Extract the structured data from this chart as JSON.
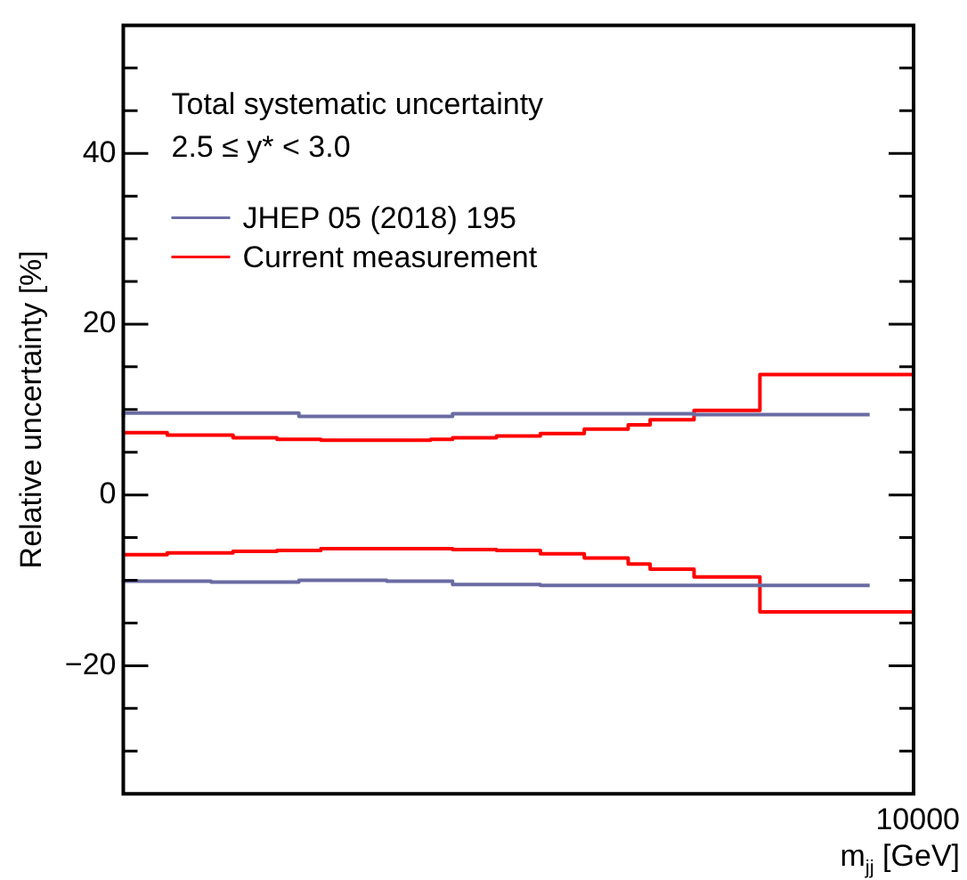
{
  "chart_data": {
    "type": "step",
    "title": "Total systematic uncertainty",
    "subtitle": "2.5 ≤ y* < 3.0",
    "xlabel": "m$_{jj}$ [GeV]",
    "ylabel": "Relative uncertainty [%]",
    "annotations": [
      "10000"
    ],
    "categories": [
      null,
      null,
      null,
      null,
      null,
      null,
      null,
      null,
      null,
      null,
      null,
      null,
      null,
      null,
      null,
      null,
      null,
      null,
      null,
      null,
      null,
      null,
      null,
      null,
      null,
      null,
      null,
      null,
      null,
      null,
      null,
      null,
      null,
      null,
      null,
      null,
      null
    ],
    "ylim": [
      -35,
      55
    ],
    "yticks": [
      {
        "value": -30,
        "label": null
      },
      {
        "value": -25,
        "label": null
      },
      {
        "value": -20,
        "label": "−20"
      },
      {
        "value": -15,
        "label": null
      },
      {
        "value": -10,
        "label": null
      },
      {
        "value": -5,
        "label": null
      },
      0,
      {
        "value": 5,
        "label": null
      },
      {
        "value": 10,
        "label": null
      },
      {
        "value": 15,
        "label": null
      },
      20,
      {
        "value": 25,
        "label": null
      },
      {
        "value": 30,
        "label": null
      },
      {
        "value": 35,
        "label": null
      },
      40,
      {
        "value": 45,
        "label": null
      },
      {
        "value": 50,
        "label": null
      }
    ],
    "grid": false,
    "legend": "top left",
    "marker": "none",
    "line_style": "solid",
    "series": [
      {
        "name": "JHEP 05 (2018) 195",
        "color": "#6b6ba3",
        "values": [
          9.1,
          9.6,
          9.6,
          9.6,
          9.6,
          9.6,
          9.6,
          9.6,
          9.6,
          9.2,
          9.2,
          9.2,
          9.2,
          9.2,
          9.2,
          9.2,
          9.5,
          9.5,
          9.5,
          9.5,
          9.5,
          9.5,
          9.5,
          9.5,
          9.5,
          9.5,
          9.5,
          9.4,
          9.4,
          9.4,
          9.4,
          9.4,
          9.4,
          9.4,
          9.4,
          null,
          null
        ]
      },
      {
        "color": "#6b6ba3",
        "values": [
          -10.0,
          -10.1,
          -10.1,
          -10.1,
          -10.1,
          -10.2,
          -10.2,
          -10.2,
          -10.2,
          -10.0,
          -10.0,
          -10.0,
          -10.0,
          -10.1,
          -10.1,
          -10.1,
          -10.5,
          -10.5,
          -10.5,
          -10.5,
          -10.6,
          -10.6,
          -10.6,
          -10.6,
          -10.6,
          -10.6,
          -10.6,
          -10.6,
          -10.6,
          -10.6,
          -10.6,
          -10.6,
          -10.6,
          -10.6,
          -10.6,
          null,
          null
        ]
      },
      {
        "name": "Current measurement",
        "color": "#ff0000",
        "values": [
          7.3,
          7.3,
          7.3,
          7.0,
          7.0,
          7.0,
          6.7,
          6.7,
          6.5,
          6.5,
          6.4,
          6.4,
          6.4,
          6.4,
          6.4,
          6.5,
          6.7,
          6.7,
          6.9,
          6.9,
          7.2,
          7.2,
          7.7,
          7.7,
          8.2,
          8.8,
          8.8,
          9.9,
          9.9,
          9.9,
          14.1,
          14.1,
          14.1,
          14.1,
          14.1,
          14.1,
          14.1
        ]
      },
      {
        "color": "#ff0000",
        "values": [
          -7.0,
          -7.0,
          -7.0,
          -6.8,
          -6.8,
          -6.8,
          -6.6,
          -6.6,
          -6.5,
          -6.5,
          -6.3,
          -6.3,
          -6.3,
          -6.3,
          -6.3,
          -6.3,
          -6.4,
          -6.4,
          -6.5,
          -6.5,
          -6.9,
          -6.9,
          -7.4,
          -7.4,
          -8.1,
          -8.7,
          -8.7,
          -9.6,
          -9.6,
          -9.6,
          -13.7,
          -13.7,
          -13.7,
          -13.7,
          -13.7,
          -13.7,
          -13.7
        ]
      }
    ]
  }
}
